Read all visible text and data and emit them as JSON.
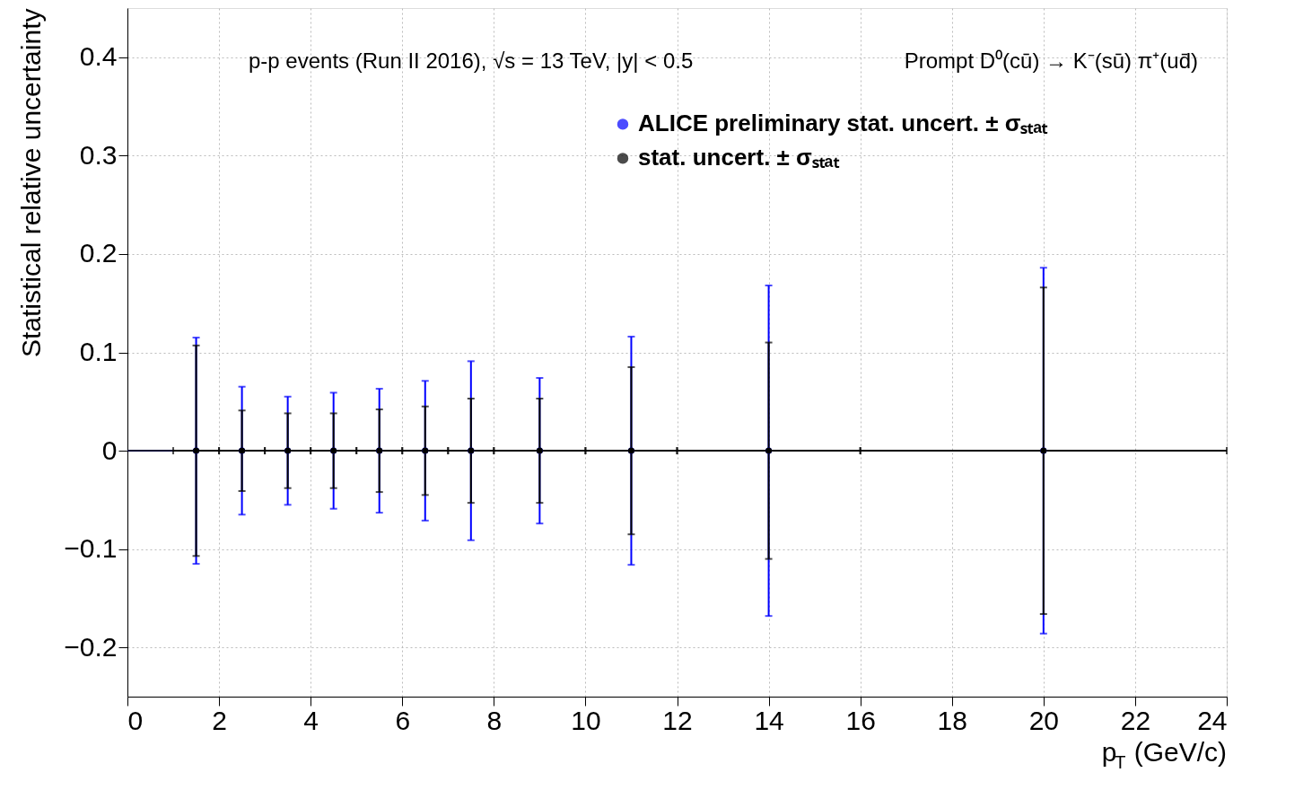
{
  "chart_data": {
    "type": "scatter",
    "xlabel": "p$_{T}$ (GeV/c)",
    "ylabel": "Statistical relative uncertainty",
    "annotations": [
      "p-p events (Run II 2016), √s = 13 TeV, |y| < 0.5",
      "Prompt D⁰(cū) → K⁻(sū)  π⁺(ud̄)"
    ],
    "x": [
      1.5,
      2.5,
      3.5,
      4.5,
      5.5,
      6.5,
      7.5,
      9,
      11,
      14,
      20
    ],
    "series": [
      {
        "name": "ALICE preliminary stat. uncert. ± σₛₜₐₜ",
        "color": "#0000ff",
        "values": [
          0,
          0,
          0,
          0,
          0,
          0,
          0,
          0,
          0,
          0,
          0
        ],
        "errors": [
          0.115,
          0.065,
          0.055,
          0.059,
          0.063,
          0.071,
          0.091,
          0.074,
          0.116,
          0.168,
          0.186
        ]
      },
      {
        "name": "stat. uncert. ± σₛₜₐₜ",
        "color": "#000000",
        "values": [
          0,
          0,
          0,
          0,
          0,
          0,
          0,
          0,
          0,
          0,
          0
        ],
        "errors": [
          0.107,
          0.041,
          0.038,
          0.038,
          0.042,
          0.045,
          0.053,
          0.053,
          0.085,
          0.11,
          0.166
        ],
        "xerrors": [
          [
            1,
            2
          ],
          [
            2,
            3
          ],
          [
            3,
            4
          ],
          [
            4,
            5
          ],
          [
            5,
            6
          ],
          [
            6,
            7
          ],
          [
            7,
            8
          ],
          [
            8,
            10
          ],
          [
            10,
            12
          ],
          [
            12,
            16
          ],
          [
            16,
            24
          ]
        ]
      }
    ],
    "ref_lines": [
      {
        "axis": "y",
        "value": 0,
        "color": "#000033"
      }
    ],
    "xlim": [
      0,
      24
    ],
    "xticks": [
      0,
      2,
      4,
      6,
      8,
      10,
      12,
      14,
      16,
      18,
      20,
      22,
      24
    ],
    "ylim": [
      -0.25,
      0.45
    ],
    "yticks": [
      -0.2,
      -0.1,
      0,
      0.1,
      0.2,
      0.3,
      0.4
    ],
    "grid": true,
    "legend": "top right",
    "marker": "circle"
  }
}
